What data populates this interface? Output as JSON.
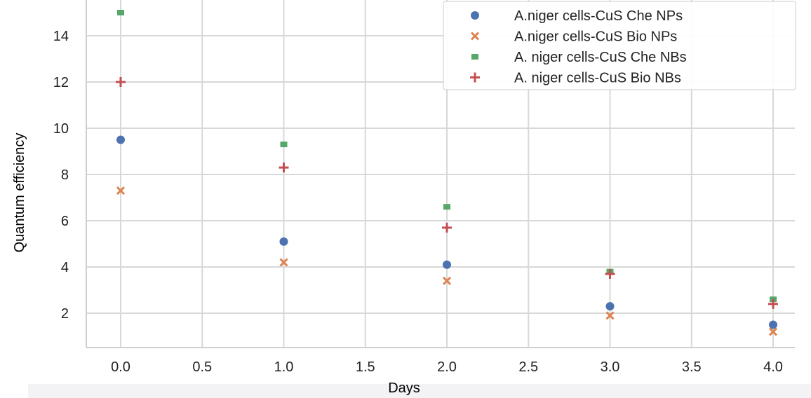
{
  "chart_data": {
    "type": "scatter",
    "title": "",
    "xlabel": "Days",
    "ylabel": "Quantum efficiency",
    "xlim": [
      -0.2,
      4.1
    ],
    "ylim": [
      0.6,
      15.5
    ],
    "xticks": [
      "0.0",
      "0.5",
      "1.0",
      "1.5",
      "2.0",
      "2.5",
      "3.0",
      "3.5",
      "4.0"
    ],
    "yticks": [
      "2",
      "4",
      "6",
      "8",
      "10",
      "12",
      "14"
    ],
    "grid": true,
    "legend_position": "top-right",
    "series": [
      {
        "name": "A.niger cells-CuS Che NPs",
        "marker": "circle",
        "color": "#4c72b0",
        "x": [
          0,
          1,
          2,
          3,
          4
        ],
        "y": [
          9.5,
          5.1,
          4.1,
          2.3,
          1.5
        ]
      },
      {
        "name": "A.niger cells-CuS Bio NPs",
        "marker": "x",
        "color": "#dd8452",
        "x": [
          0,
          1,
          2,
          3,
          4
        ],
        "y": [
          7.3,
          4.2,
          3.4,
          1.9,
          1.2
        ]
      },
      {
        "name": "A. niger cells-CuS Che NBs",
        "marker": "square",
        "color": "#55a868",
        "x": [
          0,
          1,
          2,
          3,
          4
        ],
        "y": [
          15.0,
          9.3,
          6.6,
          3.8,
          2.6
        ]
      },
      {
        "name": "A. niger cells-CuS Bio NBs",
        "marker": "plus",
        "color": "#c44e52",
        "x": [
          0,
          1,
          2,
          3,
          4
        ],
        "y": [
          12.0,
          8.3,
          5.7,
          3.7,
          2.4
        ]
      }
    ]
  }
}
